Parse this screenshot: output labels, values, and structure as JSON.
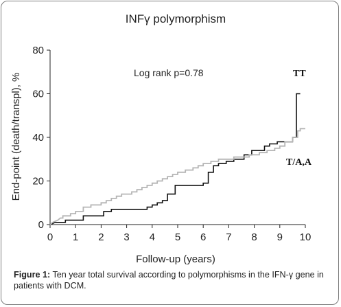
{
  "chart_data": {
    "type": "line",
    "title": "INFγ polymorphism",
    "xlabel": "Follow-up (years)",
    "ylabel": "End-point (death/transpl), %",
    "xlim": [
      0,
      10
    ],
    "ylim": [
      0,
      80
    ],
    "x_ticks": [
      "0",
      "1",
      "2",
      "3",
      "4",
      "5",
      "6",
      "7",
      "8",
      "9",
      "10"
    ],
    "y_ticks": [
      "0",
      "20",
      "40",
      "60",
      "80"
    ],
    "annotation": "Log rank p=0.78",
    "grid": false,
    "series": [
      {
        "name": "TT",
        "color": "#111111",
        "step": true,
        "points": [
          [
            0,
            0
          ],
          [
            0.2,
            1
          ],
          [
            0.6,
            1
          ],
          [
            0.6,
            2
          ],
          [
            1.3,
            2
          ],
          [
            1.3,
            4
          ],
          [
            2.1,
            4
          ],
          [
            2.1,
            6
          ],
          [
            2.4,
            6
          ],
          [
            2.4,
            7
          ],
          [
            3.8,
            7
          ],
          [
            3.8,
            8
          ],
          [
            4.0,
            8
          ],
          [
            4.0,
            9
          ],
          [
            4.2,
            9
          ],
          [
            4.2,
            10
          ],
          [
            4.4,
            10
          ],
          [
            4.4,
            11
          ],
          [
            4.6,
            11
          ],
          [
            4.6,
            14
          ],
          [
            4.9,
            14
          ],
          [
            4.9,
            18
          ],
          [
            5.1,
            18
          ],
          [
            6.0,
            18
          ],
          [
            6.0,
            19
          ],
          [
            6.2,
            19
          ],
          [
            6.2,
            24
          ],
          [
            6.4,
            24
          ],
          [
            6.4,
            27
          ],
          [
            6.6,
            27
          ],
          [
            6.6,
            28
          ],
          [
            6.9,
            28
          ],
          [
            6.9,
            29
          ],
          [
            7.2,
            29
          ],
          [
            7.2,
            30
          ],
          [
            7.6,
            30
          ],
          [
            7.6,
            32
          ],
          [
            7.9,
            32
          ],
          [
            7.9,
            34
          ],
          [
            8.4,
            34
          ],
          [
            8.4,
            36
          ],
          [
            8.6,
            36
          ],
          [
            8.6,
            37
          ],
          [
            8.9,
            37
          ],
          [
            8.9,
            38
          ],
          [
            9.5,
            38
          ],
          [
            9.5,
            40
          ],
          [
            9.65,
            40
          ],
          [
            9.65,
            60
          ],
          [
            9.8,
            60
          ]
        ]
      },
      {
        "name": "T/A,A",
        "color": "#b5b5b5",
        "step": true,
        "points": [
          [
            0,
            0
          ],
          [
            0.1,
            1
          ],
          [
            0.3,
            2
          ],
          [
            0.4,
            3
          ],
          [
            0.5,
            3
          ],
          [
            0.5,
            4
          ],
          [
            0.8,
            4
          ],
          [
            0.8,
            5
          ],
          [
            1.0,
            5
          ],
          [
            1.0,
            6
          ],
          [
            1.3,
            6
          ],
          [
            1.3,
            8
          ],
          [
            1.6,
            8
          ],
          [
            1.6,
            9
          ],
          [
            2.0,
            9
          ],
          [
            2.0,
            10
          ],
          [
            2.2,
            10
          ],
          [
            2.2,
            11
          ],
          [
            2.4,
            11
          ],
          [
            2.4,
            12
          ],
          [
            2.6,
            12
          ],
          [
            2.6,
            13
          ],
          [
            2.8,
            13
          ],
          [
            2.8,
            14
          ],
          [
            3.2,
            14
          ],
          [
            3.2,
            15
          ],
          [
            3.4,
            15
          ],
          [
            3.4,
            16
          ],
          [
            3.6,
            16
          ],
          [
            3.6,
            17
          ],
          [
            3.8,
            17
          ],
          [
            3.8,
            18
          ],
          [
            4.0,
            18
          ],
          [
            4.0,
            19
          ],
          [
            4.2,
            19
          ],
          [
            4.2,
            20
          ],
          [
            4.4,
            20
          ],
          [
            4.4,
            21
          ],
          [
            4.6,
            21
          ],
          [
            4.6,
            22
          ],
          [
            4.8,
            22
          ],
          [
            4.8,
            23
          ],
          [
            5.0,
            23
          ],
          [
            5.0,
            24
          ],
          [
            5.3,
            24
          ],
          [
            5.3,
            25
          ],
          [
            5.6,
            25
          ],
          [
            5.6,
            26
          ],
          [
            5.8,
            26
          ],
          [
            5.8,
            27
          ],
          [
            6.0,
            27
          ],
          [
            6.0,
            28
          ],
          [
            6.3,
            28
          ],
          [
            6.3,
            29
          ],
          [
            6.6,
            29
          ],
          [
            6.6,
            30
          ],
          [
            7.2,
            30
          ],
          [
            7.2,
            31
          ],
          [
            7.8,
            31
          ],
          [
            7.8,
            32
          ],
          [
            8.2,
            32
          ],
          [
            8.2,
            33
          ],
          [
            8.5,
            33
          ],
          [
            8.5,
            34
          ],
          [
            8.8,
            34
          ],
          [
            8.8,
            35
          ],
          [
            9.0,
            35
          ],
          [
            9.0,
            36
          ],
          [
            9.2,
            36
          ],
          [
            9.2,
            38
          ],
          [
            9.5,
            38
          ],
          [
            9.5,
            40
          ],
          [
            9.7,
            40
          ],
          [
            9.7,
            43
          ],
          [
            9.8,
            43
          ],
          [
            9.8,
            44
          ],
          [
            10.0,
            44
          ]
        ]
      }
    ]
  },
  "caption": {
    "label": "Figure 1:",
    "text": " Ten year total survival according to polymorphisms in the IFN-γ gene in patients with DCM."
  }
}
